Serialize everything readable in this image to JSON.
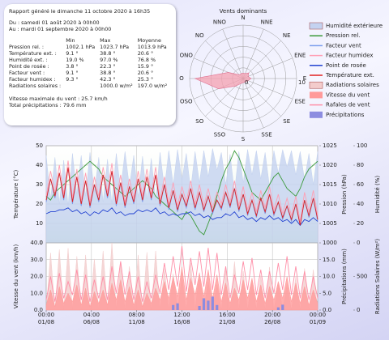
{
  "report": {
    "generated": "Rapport généré le dimanche 11 octobre 2020 à 16h35",
    "from": "Du : samedi 01 août 2020 à 00h00",
    "to": "Au : mardi 01 septembre 2020 à 00h00",
    "headers": [
      "Min",
      "Max",
      "Moyenne"
    ],
    "rows": [
      {
        "label": "Pression rel. :",
        "min": "1002.1 hPa",
        "max": "1023.7 hPa",
        "mean": "1013.9 hPa"
      },
      {
        "label": "Température ext. :",
        "min": "9.1 °",
        "max": "38.8 °",
        "mean": "20.6 °"
      },
      {
        "label": "Humidité ext. :",
        "min": "19.0 %",
        "max": "97.0 %",
        "mean": "76.8 %"
      },
      {
        "label": "Point de rosée :",
        "min": "3.8 °",
        "max": "22.3 °",
        "mean": "15.9 °"
      },
      {
        "label": "Facteur vent :",
        "min": "9.1 °",
        "max": "38.8 °",
        "mean": "20.6 °"
      },
      {
        "label": "Facteur humidex :",
        "min": "9.3 °",
        "max": "42.3 °",
        "mean": "25.3 °"
      },
      {
        "label": "Radiations solaires :",
        "max": "1000.0 w/m²",
        "mean": "197.0 w/m²"
      }
    ],
    "max_wind": "Vitesse maximale du vent : 25.7 km/h",
    "total_precip": "Total précipitations : 79.6 mm"
  },
  "chart_data": [
    {
      "type": "radar",
      "title": "Vents dominants",
      "categories": [
        "N",
        "NNE",
        "NE",
        "ENE",
        "E",
        "ESE",
        "SE",
        "SSE",
        "S",
        "SSO",
        "SO",
        "OSO",
        "O",
        "ONO",
        "NO",
        "NNO"
      ],
      "values": [
        1,
        1,
        1.5,
        1,
        1.5,
        1,
        0.8,
        0.7,
        0.8,
        1,
        2,
        5,
        9,
        3,
        1,
        1
      ],
      "rlim": [
        0,
        10
      ],
      "rticks": [
        0,
        10
      ],
      "color": "#f4a0b0"
    },
    {
      "type": "line",
      "ylabel": "Température (°C)",
      "y2label": "Pression (hPa)",
      "y3label": "Humidité (%)",
      "xlim": [
        "01/08 00:00",
        "01/09 00:00"
      ],
      "ylim": [
        0,
        50
      ],
      "yticks": [
        0,
        10,
        20,
        30,
        40,
        50
      ],
      "y2lim": [
        1000,
        1025
      ],
      "y2ticks": [
        1000,
        1005,
        1010,
        1015,
        1020,
        1025
      ],
      "y3lim": [
        0,
        100
      ],
      "y3ticks": [
        0,
        20,
        40,
        60,
        80,
        100
      ],
      "grid": true,
      "x": [
        "01/08 00:00",
        "01/08 12:00",
        "02/08 00:00",
        "02/08 12:00",
        "03/08 00:00",
        "03/08 12:00",
        "04/08 00:00",
        "04/08 12:00",
        "05/08 00:00",
        "05/08 12:00",
        "06/08 00:00",
        "06/08 12:00",
        "07/08 00:00",
        "07/08 12:00",
        "08/08 00:00",
        "08/08 12:00",
        "09/08 00:00",
        "09/08 12:00",
        "10/08 00:00",
        "10/08 12:00",
        "11/08 00:00",
        "11/08 12:00",
        "12/08 00:00",
        "12/08 12:00",
        "13/08 00:00",
        "13/08 12:00",
        "14/08 00:00",
        "14/08 12:00",
        "15/08 00:00",
        "15/08 12:00",
        "16/08 00:00",
        "16/08 12:00",
        "17/08 00:00",
        "17/08 12:00",
        "18/08 00:00",
        "18/08 12:00",
        "19/08 00:00",
        "19/08 12:00",
        "20/08 00:00",
        "20/08 12:00",
        "21/08 00:00",
        "21/08 12:00",
        "22/08 00:00",
        "22/08 12:00",
        "23/08 00:00",
        "23/08 12:00",
        "24/08 00:00",
        "24/08 12:00",
        "25/08 00:00",
        "25/08 12:00",
        "26/08 00:00",
        "26/08 12:00",
        "27/08 00:00",
        "27/08 12:00",
        "28/08 00:00",
        "28/08 12:00",
        "29/08 00:00",
        "29/08 12:00",
        "30/08 00:00",
        "30/08 12:00",
        "31/08 00:00",
        "31/08 12:00",
        "01/09 00:00"
      ],
      "series": [
        {
          "name": "Humidité extérieure",
          "color": "#c4d2f0",
          "style": "area",
          "axis": "y3",
          "values": [
            90,
            45,
            88,
            40,
            85,
            38,
            92,
            50,
            90,
            48,
            93,
            52,
            88,
            42,
            86,
            40,
            92,
            55,
            94,
            58,
            90,
            47,
            89,
            45,
            87,
            43,
            93,
            56,
            95,
            60,
            96,
            65,
            92,
            55,
            94,
            62,
            95,
            68,
            97,
            75,
            93,
            60,
            91,
            52,
            94,
            62,
            96,
            70,
            95,
            66,
            93,
            58,
            95,
            72,
            96,
            78,
            95,
            70,
            94,
            65,
            92,
            60,
            94
          ]
        },
        {
          "name": "Pression rel.",
          "color": "#3a9a3a",
          "style": "line",
          "axis": "y2",
          "values": [
            1012,
            1011,
            1013,
            1014,
            1015,
            1016,
            1017,
            1018,
            1019,
            1020,
            1021,
            1020,
            1019,
            1017,
            1016,
            1015,
            1014,
            1013,
            1012,
            1013,
            1014,
            1015,
            1016,
            1015,
            1014,
            1012,
            1011,
            1010,
            1009,
            1008,
            1007,
            1006,
            1008,
            1007,
            1005,
            1003,
            1002.1,
            1005,
            1008,
            1012,
            1016,
            1019,
            1021,
            1023.7,
            1022,
            1019,
            1016,
            1013,
            1012,
            1011,
            1013,
            1015,
            1017,
            1018,
            1016,
            1014,
            1013,
            1012,
            1014,
            1017,
            1019,
            1020,
            1021
          ]
        },
        {
          "name": "Facteur vent",
          "color": "#7a9cec",
          "style": "line",
          "axis": "y",
          "values": [
            21,
            33,
            23,
            36,
            22,
            38.8,
            20,
            34,
            19,
            32,
            18,
            30,
            21,
            35,
            23,
            37,
            19,
            31,
            18,
            29,
            20,
            33,
            21,
            34,
            22,
            35,
            19,
            30,
            17,
            27,
            16,
            25,
            18,
            28,
            17,
            26,
            16,
            24,
            15,
            22,
            17,
            26,
            18,
            28,
            16,
            25,
            14,
            22,
            13,
            23,
            15,
            25,
            14,
            21,
            12,
            19,
            11,
            20,
            9.1,
            22,
            13,
            23,
            11
          ]
        },
        {
          "name": "Facteur humidex",
          "color": "#ff9fb4",
          "style": "line",
          "axis": "y",
          "values": [
            24,
            37,
            26,
            40,
            25,
            42.3,
            23,
            38,
            22,
            36,
            21,
            34,
            24,
            39,
            26,
            41,
            22,
            35,
            21,
            33,
            23,
            37,
            24,
            38,
            25,
            39,
            22,
            34,
            20,
            31,
            19,
            29,
            21,
            32,
            20,
            30,
            19,
            28,
            18,
            26,
            20,
            30,
            21,
            32,
            19,
            29,
            17,
            26,
            16,
            27,
            18,
            29,
            17,
            25,
            15,
            23,
            14,
            24,
            11,
            26,
            16,
            27,
            14
          ]
        },
        {
          "name": "Point de rosée",
          "color": "#2040d0",
          "style": "line",
          "axis": "y",
          "values": [
            15,
            16,
            16,
            17,
            17,
            18,
            16,
            17,
            15,
            16,
            14,
            16,
            15,
            17,
            16,
            18,
            15,
            16,
            14,
            15,
            15,
            17,
            16,
            17,
            16,
            18,
            15,
            16,
            14,
            15,
            14,
            15,
            15,
            16,
            14,
            15,
            13,
            14,
            12,
            13,
            13,
            15,
            14,
            16,
            13,
            14,
            12,
            13,
            11,
            13,
            12,
            14,
            12,
            13,
            11,
            12,
            10,
            12,
            9,
            12,
            11,
            13,
            11
          ]
        },
        {
          "name": "Température ext.",
          "color": "#e02020",
          "style": "line",
          "axis": "y",
          "values": [
            22,
            33,
            24,
            36,
            23,
            38.8,
            21,
            34,
            20,
            32,
            19,
            30,
            22,
            35,
            24,
            37,
            20,
            31,
            19,
            29,
            21,
            33,
            22,
            34,
            23,
            35,
            20,
            30,
            18,
            27,
            17,
            25,
            19,
            28,
            18,
            26,
            17,
            24,
            16,
            22,
            18,
            26,
            19,
            28,
            17,
            25,
            15,
            22,
            14,
            23,
            16,
            25,
            15,
            21,
            13,
            19,
            12,
            20,
            9.1,
            22,
            14,
            23,
            12
          ]
        }
      ]
    },
    {
      "type": "line",
      "ylabel": "Vitesse du vent (km/h)",
      "y2label": "Précipitations (mm)",
      "y3label": "Radiations Solaires (W/m²)",
      "xlim": [
        "01/08 00:00",
        "01/09 00:00"
      ],
      "xticks": [
        {
          "value": "01/08 00:00",
          "label": "00:00\n01/08"
        },
        {
          "value": "06/08 04:00",
          "label": "04:00\n06/08"
        },
        {
          "value": "11/08 08:00",
          "label": "08:00\n11/08"
        },
        {
          "value": "16/08 12:00",
          "label": "12:00\n16/08"
        },
        {
          "value": "21/08 16:00",
          "label": "16:00\n21/08"
        },
        {
          "value": "26/08 20:00",
          "label": "20:00\n26/08"
        },
        {
          "value": "01/09 00:00",
          "label": "00:00\n01/09"
        }
      ],
      "ylim": [
        0,
        40
      ],
      "yticks": [
        {
          "value": 0,
          "label": "0.0"
        },
        {
          "value": 10,
          "label": "10.0"
        },
        {
          "value": 20,
          "label": "20.0"
        },
        {
          "value": 30,
          "label": "30.0"
        },
        {
          "value": 40,
          "label": "40.0"
        }
      ],
      "y2lim": [
        0,
        20
      ],
      "y2ticks": [
        {
          "value": 0,
          "label": "0.0"
        },
        {
          "value": 5,
          "label": "5.0"
        },
        {
          "value": 10,
          "label": "10.0"
        },
        {
          "value": 15,
          "label": "15.0"
        }
      ],
      "y3lim": [
        0,
        1000
      ],
      "y3ticks": [
        0,
        500
      ],
      "grid": true,
      "x": [
        "01/08 00:00",
        "01/08 12:00",
        "02/08 00:00",
        "02/08 12:00",
        "03/08 00:00",
        "03/08 12:00",
        "04/08 00:00",
        "04/08 12:00",
        "05/08 00:00",
        "05/08 12:00",
        "06/08 00:00",
        "06/08 12:00",
        "07/08 00:00",
        "07/08 12:00",
        "08/08 00:00",
        "08/08 12:00",
        "09/08 00:00",
        "09/08 12:00",
        "10/08 00:00",
        "10/08 12:00",
        "11/08 00:00",
        "11/08 12:00",
        "12/08 00:00",
        "12/08 12:00",
        "13/08 00:00",
        "13/08 12:00",
        "14/08 00:00",
        "14/08 12:00",
        "15/08 00:00",
        "15/08 12:00",
        "16/08 00:00",
        "16/08 12:00",
        "17/08 00:00",
        "17/08 12:00",
        "18/08 00:00",
        "18/08 12:00",
        "19/08 00:00",
        "19/08 12:00",
        "20/08 00:00",
        "20/08 12:00",
        "21/08 00:00",
        "21/08 12:00",
        "22/08 00:00",
        "22/08 12:00",
        "23/08 00:00",
        "23/08 12:00",
        "24/08 00:00",
        "24/08 12:00",
        "25/08 00:00",
        "25/08 12:00",
        "26/08 00:00",
        "26/08 12:00",
        "27/08 00:00",
        "27/08 12:00",
        "28/08 00:00",
        "28/08 12:00",
        "29/08 00:00",
        "29/08 12:00",
        "30/08 00:00",
        "30/08 12:00",
        "31/08 00:00",
        "31/08 12:00",
        "01/09 00:00"
      ],
      "series": [
        {
          "name": "Radiations solaires",
          "color": "#f3cccc",
          "style": "area",
          "axis": "y3",
          "values": [
            0,
            850,
            0,
            900,
            0,
            920,
            0,
            800,
            0,
            820,
            0,
            760,
            0,
            880,
            0,
            1000,
            0,
            700,
            0,
            650,
            0,
            820,
            0,
            860,
            0,
            880,
            0,
            620,
            0,
            540,
            0,
            480,
            0,
            700,
            0,
            560,
            0,
            420,
            0,
            380,
            0,
            600,
            0,
            720,
            0,
            580,
            0,
            450,
            0,
            520,
            0,
            640,
            0,
            400,
            0,
            380,
            0,
            500,
            0,
            620,
            0,
            600,
            0
          ]
        },
        {
          "name": "Vitesse du vent",
          "color": "#ff9a9a",
          "style": "area",
          "axis": "y",
          "values": [
            3,
            12,
            2,
            14,
            4,
            10,
            5,
            15,
            3,
            13,
            2,
            11,
            4,
            12,
            3,
            16,
            6,
            18,
            5,
            14,
            3,
            12,
            2,
            10,
            4,
            13,
            6,
            17,
            7,
            20,
            8,
            25.7,
            6,
            19,
            9,
            22,
            8,
            24,
            7,
            21,
            5,
            16,
            4,
            13,
            6,
            18,
            7,
            19,
            5,
            15,
            4,
            14,
            6,
            17,
            7,
            20,
            5,
            16,
            4,
            14,
            3,
            12,
            4
          ]
        },
        {
          "name": "Rafales de vent",
          "color": "#ff8fa8",
          "style": "line",
          "axis": "y",
          "values": [
            6,
            20,
            5,
            22,
            7,
            17,
            9,
            24,
            6,
            21,
            5,
            18,
            7,
            20,
            6,
            26,
            10,
            29,
            9,
            23,
            6,
            20,
            5,
            17,
            7,
            21,
            10,
            28,
            12,
            32,
            14,
            38,
            11,
            31,
            15,
            35,
            14,
            37,
            12,
            34,
            9,
            26,
            7,
            21,
            10,
            29,
            12,
            31,
            9,
            24,
            7,
            23,
            10,
            28,
            12,
            32,
            9,
            26,
            7,
            23,
            6,
            20,
            7
          ]
        },
        {
          "name": "Précipitations",
          "color": "#8c8ce0",
          "style": "bar",
          "axis": "y2",
          "values": [
            0,
            0,
            0,
            0,
            0,
            0,
            0,
            0,
            0,
            0,
            0,
            0,
            0,
            0,
            0,
            0,
            0,
            0,
            0,
            0,
            0,
            0,
            0,
            0,
            0,
            0,
            0,
            0,
            0,
            1.5,
            2,
            0,
            0,
            0,
            0,
            1.2,
            3.5,
            2.8,
            4,
            1.5,
            0,
            0,
            0,
            0,
            0,
            0,
            0,
            0,
            0,
            0,
            0,
            0,
            0,
            0.8,
            1.6,
            0,
            0,
            0,
            0,
            0,
            0,
            0,
            0
          ]
        }
      ]
    }
  ]
}
